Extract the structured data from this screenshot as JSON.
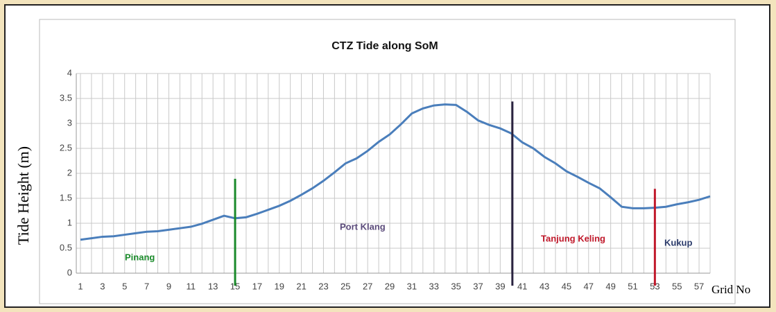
{
  "chart_data": {
    "type": "line",
    "title": "CTZ Tide along SoM",
    "x_label": "Grid No",
    "y_label": "Tide Height (m)",
    "x": [
      1,
      2,
      3,
      4,
      5,
      6,
      7,
      8,
      9,
      10,
      11,
      12,
      13,
      14,
      15,
      16,
      17,
      18,
      19,
      20,
      21,
      22,
      23,
      24,
      25,
      26,
      27,
      28,
      29,
      30,
      31,
      32,
      33,
      34,
      35,
      36,
      37,
      38,
      39,
      40,
      41,
      42,
      43,
      44,
      45,
      46,
      47,
      48,
      49,
      50,
      51,
      52,
      53,
      54,
      55,
      56,
      57,
      58
    ],
    "series": [
      {
        "name": "Tide Height",
        "color": "#4a7ebb",
        "values": [
          0.67,
          0.7,
          0.73,
          0.74,
          0.77,
          0.8,
          0.83,
          0.84,
          0.87,
          0.9,
          0.93,
          0.99,
          1.07,
          1.15,
          1.1,
          1.12,
          1.19,
          1.27,
          1.35,
          1.45,
          1.57,
          1.7,
          1.85,
          2.02,
          2.2,
          2.3,
          2.45,
          2.63,
          2.78,
          2.98,
          3.2,
          3.3,
          3.36,
          3.38,
          3.37,
          3.23,
          3.06,
          2.97,
          2.9,
          2.8,
          2.62,
          2.5,
          2.33,
          2.2,
          2.04,
          1.93,
          1.81,
          1.7,
          1.52,
          1.33,
          1.3,
          1.3,
          1.31,
          1.33,
          1.38,
          1.42,
          1.47,
          1.54
        ]
      }
    ],
    "xlim": [
      1,
      58
    ],
    "xticks": [
      1,
      3,
      5,
      7,
      9,
      11,
      13,
      15,
      17,
      19,
      21,
      23,
      25,
      27,
      29,
      31,
      33,
      35,
      37,
      39,
      41,
      43,
      45,
      47,
      49,
      51,
      53,
      55,
      57
    ],
    "ylim": [
      0,
      4
    ],
    "yticks": [
      0,
      0.5,
      1,
      1.5,
      2,
      2.5,
      3,
      3.5,
      4
    ],
    "grid": true,
    "markers": [
      {
        "x": 15,
        "top": 1.89,
        "color": "#1a8a2a"
      },
      {
        "x": 40.1,
        "top": 3.44,
        "color": "#2a2340"
      },
      {
        "x": 53,
        "top": 1.69,
        "color": "#c0182a"
      }
    ],
    "annotations": [
      {
        "text": "Pinang",
        "color": "#1a8a2a"
      },
      {
        "text": "Port Klang",
        "color": "#5a4a7a"
      },
      {
        "text": "Tanjung Keling",
        "color": "#c0182a"
      },
      {
        "text": "Kukup",
        "color": "#2a3a6a"
      }
    ]
  }
}
